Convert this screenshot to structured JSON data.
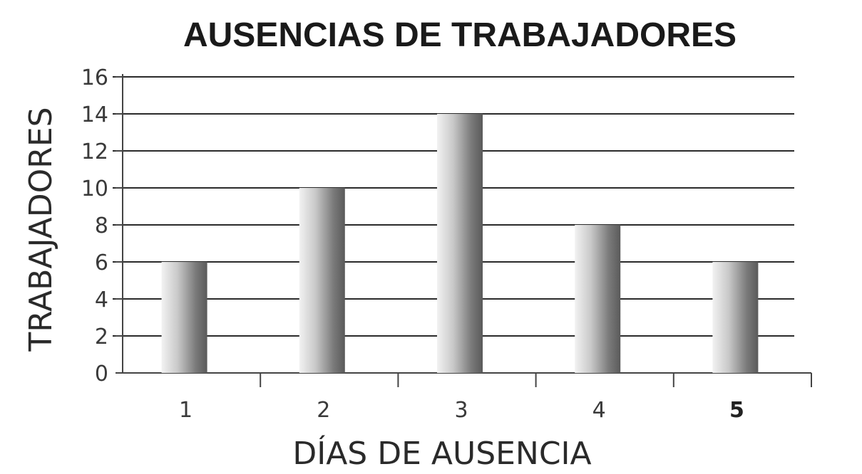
{
  "chart_data": {
    "type": "bar",
    "title": "AUSENCIAS DE TRABAJADORES",
    "xlabel": "DÍAS DE AUSENCIA",
    "ylabel": "TRABAJADORES",
    "categories": [
      "1",
      "2",
      "3",
      "4",
      "5"
    ],
    "values": [
      6,
      10,
      14,
      8,
      6
    ],
    "ylim": [
      0,
      16
    ],
    "yticks": [
      0,
      2,
      4,
      6,
      8,
      10,
      12,
      14,
      16
    ],
    "grid": true,
    "bar_color": "#8a8a8a"
  }
}
